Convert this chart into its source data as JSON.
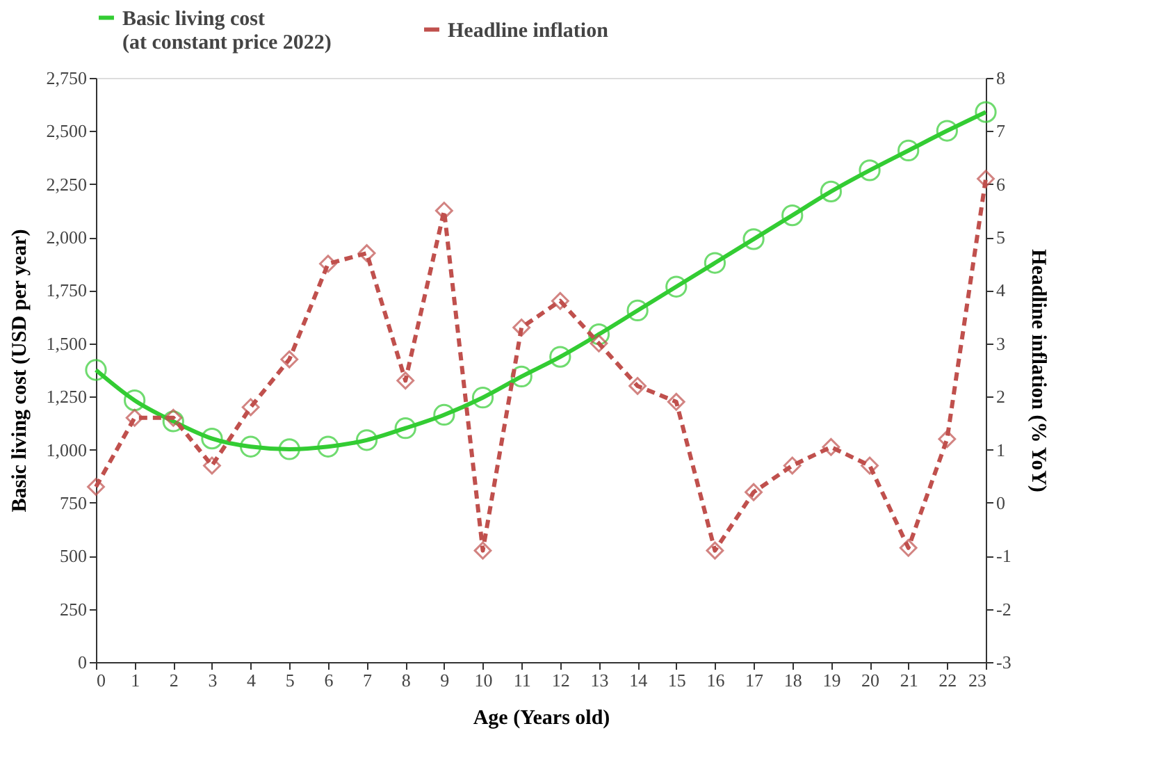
{
  "chart_data": {
    "type": "line",
    "xlabel": "Age (Years old)",
    "ylabel": "Basic living cost (USD per year)",
    "y2label": "Headline inflation (% YoY)",
    "x": [
      0,
      1,
      2,
      3,
      4,
      5,
      6,
      7,
      8,
      9,
      10,
      11,
      12,
      13,
      14,
      15,
      16,
      17,
      18,
      19,
      20,
      21,
      22,
      23
    ],
    "xlim": [
      0,
      23
    ],
    "xticks": [
      0,
      1,
      2,
      3,
      4,
      5,
      6,
      7,
      8,
      9,
      10,
      11,
      12,
      13,
      14,
      15,
      16,
      17,
      18,
      19,
      20,
      21,
      22,
      23
    ],
    "ylim": [
      0,
      2750
    ],
    "yticks": [
      {
        "value": 0,
        "label": "0"
      },
      {
        "value": 250,
        "label": "250"
      },
      {
        "value": 500,
        "label": "500"
      },
      {
        "value": 750,
        "label": "750"
      },
      {
        "value": 1000,
        "label": "1,000"
      },
      {
        "value": 1250,
        "label": "1,250"
      },
      {
        "value": 1500,
        "label": "1,500"
      },
      {
        "value": 1750,
        "label": "1,750"
      },
      {
        "value": 2000,
        "label": "2,000"
      },
      {
        "value": 2250,
        "label": "2,250"
      },
      {
        "value": 2500,
        "label": "2,500"
      },
      {
        "value": 2750,
        "label": "2,750"
      }
    ],
    "y2lim": [
      -3,
      8
    ],
    "y2ticks": [
      -3,
      -2,
      -1,
      0,
      1,
      2,
      3,
      4,
      5,
      6,
      7,
      8
    ],
    "series": [
      {
        "name": "Basic living cost\n(at constant price 2022)",
        "color": "#33cc33",
        "marker": "circle",
        "line_style": "solid",
        "values": [
          1375,
          1232,
          1133,
          1052,
          1014,
          1002,
          1014,
          1045,
          1101,
          1164,
          1245,
          1344,
          1437,
          1543,
          1655,
          1767,
          1879,
          1991,
          2103,
          2215,
          2315,
          2408,
          2501,
          2589
        ]
      },
      {
        "name": "Headline inflation",
        "color": "#c0504d",
        "marker": "diamond",
        "line_style": "dashed",
        "axis": "y2",
        "values": [
          0.3,
          1.6,
          1.6,
          0.7,
          1.8,
          2.7,
          4.5,
          4.7,
          2.3,
          5.5,
          -0.9,
          3.3,
          3.8,
          3.0,
          2.2,
          1.9,
          -0.9,
          0.2,
          0.7,
          1.05,
          0.7,
          -0.85,
          1.2,
          6.1
        ]
      }
    ],
    "grid": false,
    "legend": "top"
  }
}
